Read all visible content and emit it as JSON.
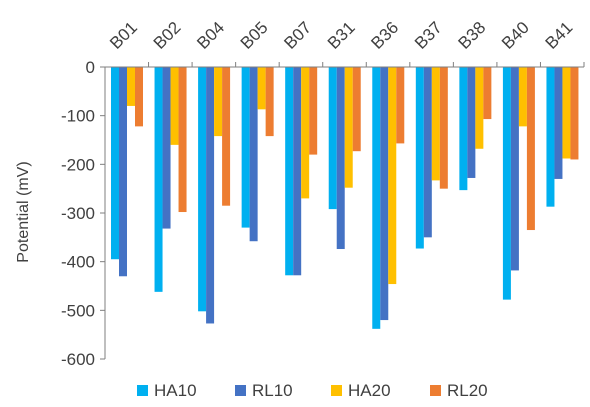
{
  "chart_data": {
    "type": "bar",
    "categories": [
      "B01",
      "B02",
      "B04",
      "B05",
      "B07",
      "B31",
      "B36",
      "B37",
      "B38",
      "B40",
      "B41"
    ],
    "series": [
      {
        "name": "HA10",
        "color": "#00B0F0",
        "values": [
          -395,
          -462,
          -502,
          -330,
          -428,
          -292,
          -538,
          -373,
          -253,
          -478,
          -287
        ]
      },
      {
        "name": "RL10",
        "color": "#4472C4",
        "values": [
          -430,
          -332,
          -527,
          -358,
          -428,
          -374,
          -520,
          -350,
          -228,
          -418,
          -230
        ]
      },
      {
        "name": "HA20",
        "color": "#FFC000",
        "values": [
          -80,
          -160,
          -142,
          -87,
          -270,
          -248,
          -446,
          -233,
          -168,
          -122,
          -188
        ]
      },
      {
        "name": "RL20",
        "color": "#ED7D31",
        "values": [
          -122,
          -298,
          -285,
          -142,
          -180,
          -173,
          -157,
          -250,
          -107,
          -335,
          -190
        ]
      }
    ],
    "ylabel": "Potential (mV)",
    "xlabel": "",
    "ylim": [
      -600,
      0
    ],
    "yticks": [
      "0",
      "-100",
      "-200",
      "-300",
      "-400",
      "-500",
      "-600"
    ],
    "grid": false,
    "legend_position": "bottom"
  }
}
